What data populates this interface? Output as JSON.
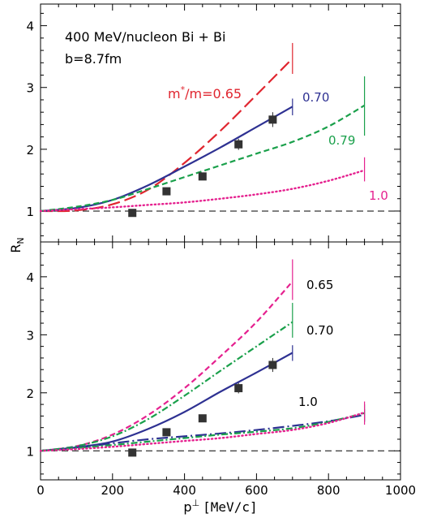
{
  "figure": {
    "ylabel": "R",
    "ylabel_sub": "N",
    "xlabel_p": "p",
    "xlabel_sup": "⊥",
    "xlabel_units": "[MeV/c]"
  },
  "chart_data": [
    {
      "panel": "top",
      "type": "line",
      "xlim": [
        0,
        1000
      ],
      "ylim": [
        0.5,
        4.35
      ],
      "x_ticks": [
        0,
        200,
        400,
        600,
        800,
        1000
      ],
      "y_ticks": [
        1,
        2,
        3,
        4
      ],
      "grid": false,
      "annotations": {
        "system": "400 MeV/nucleon Bi + Bi",
        "impact": "b=8.7fm",
        "label_065_prefix": "m",
        "label_065_sup": "*",
        "label_065_suffix": "/m=0.65",
        "label_070": "0.70",
        "label_079": "0.79",
        "label_10": "1.0"
      },
      "reference_line": {
        "y": 1.0,
        "style": "dashed",
        "color": "#000000"
      },
      "data_points": {
        "x": [
          255,
          350,
          450,
          550,
          645
        ],
        "y": [
          0.97,
          1.32,
          1.56,
          2.08,
          2.48
        ],
        "yerr": [
          0.0,
          0.05,
          0.05,
          0.09,
          0.12
        ]
      },
      "series": [
        {
          "mstar_over_m": 0.65,
          "color": "#e0252f",
          "style": "long-dash",
          "x": [
            0,
            100,
            200,
            300,
            400,
            500,
            600,
            700
          ],
          "y": [
            1.0,
            1.01,
            1.11,
            1.35,
            1.78,
            2.3,
            2.88,
            3.47
          ],
          "end_bar": [
            3.22,
            3.72
          ]
        },
        {
          "mstar_over_m": 0.7,
          "color": "#2e3192",
          "style": "solid",
          "x": [
            0,
            100,
            200,
            300,
            400,
            500,
            600,
            700
          ],
          "y": [
            1.0,
            1.05,
            1.18,
            1.42,
            1.72,
            2.03,
            2.36,
            2.69
          ],
          "end_bar": [
            2.55,
            2.82
          ]
        },
        {
          "mstar_over_m": 0.79,
          "color": "#1aa04b",
          "style": "dashed",
          "x": [
            0,
            100,
            200,
            300,
            400,
            500,
            600,
            700,
            800,
            900
          ],
          "y": [
            1.0,
            1.07,
            1.18,
            1.36,
            1.55,
            1.74,
            1.93,
            2.12,
            2.37,
            2.71
          ],
          "end_bar": [
            2.22,
            3.18
          ]
        },
        {
          "mstar_over_m": 1.0,
          "color": "#e5218f",
          "style": "dotted",
          "x": [
            0,
            100,
            200,
            300,
            400,
            500,
            600,
            700,
            800,
            900
          ],
          "y": [
            1.0,
            1.03,
            1.06,
            1.1,
            1.14,
            1.2,
            1.27,
            1.36,
            1.49,
            1.66
          ],
          "end_bar": [
            1.48,
            1.87
          ]
        }
      ]
    },
    {
      "panel": "bottom",
      "type": "line",
      "xlabel": "p⊥ [MeV/c]",
      "xlim": [
        0,
        1000
      ],
      "ylim": [
        0.5,
        4.6
      ],
      "x_ticks": [
        0,
        200,
        400,
        600,
        800,
        1000
      ],
      "y_ticks": [
        1,
        2,
        3,
        4
      ],
      "grid": false,
      "annotations": {
        "label_065": "0.65",
        "label_070": "0.70",
        "label_10": "1.0"
      },
      "reference_line": {
        "y": 1.0,
        "style": "dashed",
        "color": "#000000"
      },
      "data_points": {
        "x": [
          255,
          350,
          450,
          550,
          645
        ],
        "y": [
          0.97,
          1.32,
          1.56,
          2.08,
          2.48
        ],
        "yerr": [
          0.0,
          0.05,
          0.05,
          0.09,
          0.12
        ]
      },
      "series": [
        {
          "group": "0.65",
          "color": "#e5218f",
          "style": "dashed",
          "x": [
            0,
            100,
            200,
            300,
            400,
            500,
            600,
            700
          ],
          "y": [
            1.0,
            1.08,
            1.28,
            1.62,
            2.08,
            2.63,
            3.22,
            3.92
          ],
          "end_bar": [
            3.6,
            4.3
          ]
        },
        {
          "group": "0.65",
          "color": "#1aa04b",
          "style": "dash-dot",
          "x": [
            0,
            100,
            200,
            300,
            400,
            500,
            600,
            700
          ],
          "y": [
            1.0,
            1.08,
            1.25,
            1.55,
            1.95,
            2.38,
            2.8,
            3.22
          ],
          "end_bar": [
            2.95,
            3.55
          ]
        },
        {
          "group": "0.70",
          "color": "#2e3192",
          "style": "solid",
          "x": [
            0,
            100,
            200,
            300,
            400,
            500,
            600,
            700
          ],
          "y": [
            1.0,
            1.06,
            1.16,
            1.38,
            1.67,
            2.02,
            2.35,
            2.69
          ],
          "end_bar": [
            2.55,
            2.82
          ]
        },
        {
          "group": "1.0",
          "color": "#2e3192",
          "style": "long-dash-dot",
          "x": [
            0,
            100,
            200,
            300,
            400,
            500,
            600,
            700,
            800,
            900
          ],
          "y": [
            1.0,
            1.05,
            1.13,
            1.2,
            1.25,
            1.3,
            1.36,
            1.43,
            1.51,
            1.62
          ],
          "end_bar": [
            1.5,
            1.72
          ]
        },
        {
          "group": "1.0",
          "color": "#1aa04b",
          "style": "dash-dot",
          "x": [
            0,
            100,
            200,
            300,
            400,
            500,
            600,
            700,
            800,
            900
          ],
          "y": [
            1.0,
            1.05,
            1.1,
            1.16,
            1.22,
            1.28,
            1.33,
            1.39,
            1.5,
            1.65
          ],
          "end_bar": [
            1.5,
            1.8
          ]
        },
        {
          "group": "1.0",
          "color": "#e5218f",
          "style": "dotted",
          "x": [
            0,
            100,
            200,
            300,
            400,
            500,
            600,
            700,
            800,
            900
          ],
          "y": [
            1.0,
            1.03,
            1.07,
            1.12,
            1.17,
            1.22,
            1.29,
            1.36,
            1.48,
            1.66
          ],
          "end_bar": [
            1.45,
            1.85
          ]
        }
      ]
    }
  ]
}
